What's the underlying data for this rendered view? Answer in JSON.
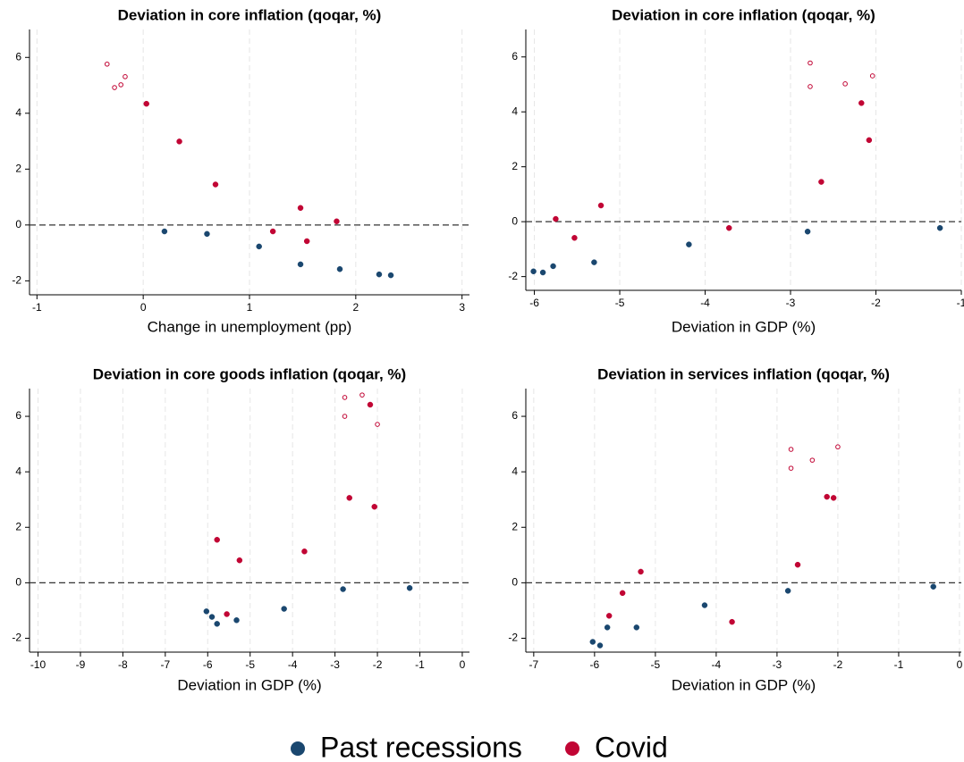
{
  "chart_data": [
    {
      "type": "scatter",
      "title": "Deviation in core inflation (qoqar, %)",
      "xlabel": "Change in unemployment (pp)",
      "xlim": [
        -1.07,
        3.07
      ],
      "xticks": [
        -1,
        0,
        1,
        2,
        3
      ],
      "ylim": [
        -2.5,
        7
      ],
      "yticks": [
        -2,
        0,
        2,
        4,
        6
      ],
      "grid": "x",
      "hline": 0,
      "series": [
        {
          "x": [
            0.2,
            0.6,
            1.09,
            1.48,
            1.85,
            2.22,
            2.33
          ],
          "values": [
            -0.23,
            -0.32,
            -0.77,
            -1.41,
            -1.58,
            -1.77,
            -1.8
          ]
        },
        {
          "x": [
            0.03,
            0.34,
            0.68,
            1.22,
            1.48,
            1.54,
            1.82,
            -0.34,
            -0.27,
            -0.21,
            -0.17
          ],
          "values": [
            4.34,
            2.99,
            1.45,
            -0.23,
            0.61,
            -0.58,
            0.13,
            5.76,
            4.92,
            5.02,
            5.31
          ],
          "open": [
            false,
            false,
            false,
            false,
            false,
            false,
            false,
            true,
            true,
            true,
            true
          ]
        }
      ]
    },
    {
      "type": "scatter",
      "title": "Deviation in core inflation (qoqar, %)",
      "xlabel": "Deviation in GDP (%)",
      "xlim": [
        -6.1,
        -1
      ],
      "xticks": [
        -6,
        -5,
        -4,
        -3,
        -2,
        -1
      ],
      "ylim": [
        -2.5,
        7
      ],
      "yticks": [
        -2,
        0,
        2,
        4,
        6
      ],
      "grid": "x",
      "hline": 0,
      "series": [
        {
          "x": [
            -6.01,
            -5.9,
            -5.78,
            -5.3,
            -4.19,
            -2.8,
            -1.25
          ],
          "values": [
            -1.81,
            -1.85,
            -1.62,
            -1.48,
            -0.83,
            -0.36,
            -0.23
          ]
        },
        {
          "x": [
            -5.75,
            -5.22,
            -5.53,
            -3.72,
            -2.64,
            -2.17,
            -2.08,
            -2.77,
            -2.77,
            -2.36,
            -2.04
          ],
          "values": [
            0.1,
            0.59,
            -0.59,
            -0.23,
            1.45,
            4.32,
            2.97,
            5.78,
            4.92,
            5.02,
            5.31
          ],
          "open": [
            false,
            false,
            false,
            false,
            false,
            false,
            false,
            true,
            true,
            true,
            true
          ]
        }
      ]
    },
    {
      "type": "scatter",
      "title": "Deviation in core goods inflation (qoqar, %)",
      "xlabel": "Deviation in GDP (%)",
      "xlim": [
        -10.2,
        0.17
      ],
      "xticks": [
        -10,
        -9,
        -8,
        -7,
        -6,
        -5,
        -4,
        -3,
        -2,
        -1,
        0
      ],
      "ylim": [
        -2.5,
        7
      ],
      "yticks": [
        -2,
        0,
        2,
        4,
        6
      ],
      "grid": "x",
      "hline": 0,
      "series": [
        {
          "x": [
            -6.03,
            -5.9,
            -5.78,
            -5.32,
            -4.2,
            -2.81,
            -1.24
          ],
          "values": [
            -1.03,
            -1.23,
            -1.48,
            -1.35,
            -0.94,
            -0.23,
            -0.19
          ]
        },
        {
          "x": [
            -5.78,
            -5.25,
            -5.55,
            -3.72,
            -2.66,
            -2.17,
            -2.07,
            -2.77,
            -2.77,
            -2.36,
            -2.0
          ],
          "values": [
            1.55,
            0.81,
            -1.13,
            1.13,
            3.06,
            6.42,
            2.74,
            6.68,
            6.0,
            6.77,
            5.71
          ],
          "open": [
            false,
            false,
            false,
            false,
            false,
            false,
            false,
            true,
            true,
            true,
            true
          ]
        }
      ]
    },
    {
      "type": "scatter",
      "title": "Deviation in services inflation (qoqar, %)",
      "xlabel": "Deviation in GDP (%)",
      "xlim": [
        -7.13,
        0.03
      ],
      "xticks": [
        -7,
        -6,
        -5,
        -4,
        -3,
        -2,
        -1,
        0
      ],
      "ylim": [
        -2.5,
        7
      ],
      "yticks": [
        -2,
        0,
        2,
        4,
        6
      ],
      "grid": "x",
      "hline": 0,
      "series": [
        {
          "x": [
            -6.03,
            -5.91,
            -5.79,
            -5.31,
            -4.19,
            -2.82,
            -0.43
          ],
          "values": [
            -2.13,
            -2.26,
            -1.61,
            -1.61,
            -0.81,
            -0.29,
            -0.14
          ]
        },
        {
          "x": [
            -5.76,
            -5.54,
            -5.24,
            -3.74,
            -2.66,
            -2.18,
            -2.07,
            -2.77,
            -2.77,
            -2.42,
            -2.0
          ],
          "values": [
            -1.19,
            -0.37,
            0.4,
            -1.41,
            0.65,
            3.1,
            3.06,
            4.81,
            4.13,
            4.42,
            4.9
          ],
          "open": [
            false,
            false,
            false,
            false,
            false,
            false,
            false,
            true,
            true,
            true,
            true
          ]
        }
      ]
    }
  ],
  "legend": {
    "position": "bottom",
    "series": [
      {
        "name": "Past recessions",
        "color": "#1a476f"
      },
      {
        "name": "Covid",
        "color": "#c10534"
      }
    ]
  }
}
